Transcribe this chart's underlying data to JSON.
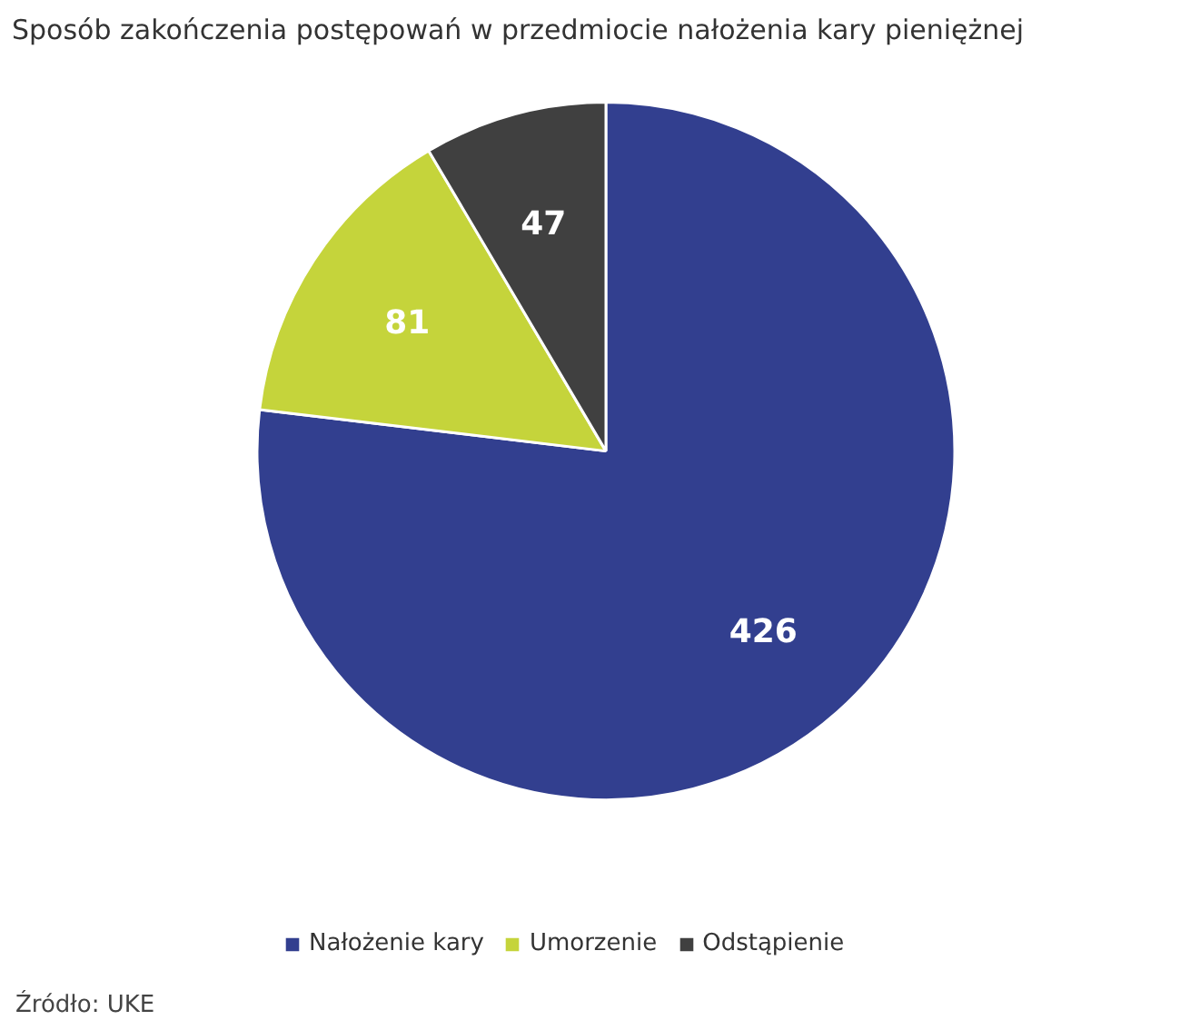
{
  "chart_data": {
    "type": "pie",
    "title": "Sposób zakończenia postępowań w przedmiocie nałożenia kary pieniężnej",
    "categories": [
      "Nałożenie kary",
      "Umorzenie",
      "Odstąpienie"
    ],
    "values": [
      426,
      81,
      47
    ],
    "colors": [
      "#323f8f",
      "#c5d43b",
      "#404040"
    ],
    "data_labels": true,
    "legend": "bottom",
    "annotations": [
      "Źródło: UKE"
    ]
  }
}
